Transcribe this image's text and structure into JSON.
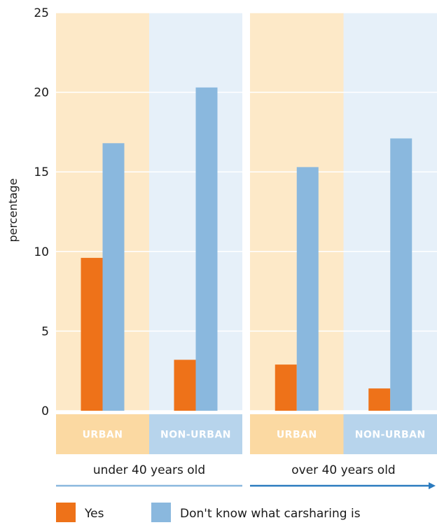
{
  "chart_data": {
    "type": "bar",
    "ylabel": "percentage",
    "ylim": [
      0,
      25
    ],
    "yticks": [
      0,
      5,
      10,
      15,
      20,
      25
    ],
    "groups": [
      {
        "label": "under 40 years old",
        "categories": [
          {
            "label": "URBAN",
            "yes": 9.6,
            "dont_know": 16.8
          },
          {
            "label": "NON-URBAN",
            "yes": 3.2,
            "dont_know": 20.3
          }
        ]
      },
      {
        "label": "over 40 years old",
        "categories": [
          {
            "label": "URBAN",
            "yes": 2.9,
            "dont_know": 15.3
          },
          {
            "label": "NON-URBAN",
            "yes": 1.4,
            "dont_know": 17.1
          }
        ]
      }
    ],
    "series": [
      {
        "key": "yes",
        "name": "Yes",
        "color": "#ee7219"
      },
      {
        "key": "dont_know",
        "name": "Don't know what carsharing is",
        "color": "#8ab8de"
      }
    ],
    "colors": {
      "urban_bg": "#fde9c8",
      "nonurban_bg": "#e6f0f9",
      "urban_label_bg": "#fbd9a2",
      "nonurban_label_bg": "#b7d4ec",
      "group_line_left": "#8ab8de",
      "group_line_right": "#2b7bbf"
    },
    "legend_position": "bottom-left"
  }
}
